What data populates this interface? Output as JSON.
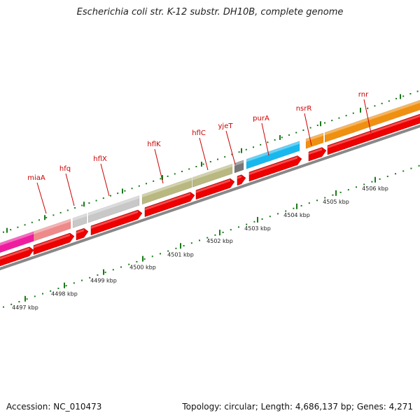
{
  "title": "Escherichia coli str. K-12 substr. DH10B, complete genome",
  "accession_text": "Accession: NC_010473",
  "summary_text": "Topology: circular; Length: 4,686,137 bp; Genes: 4,271",
  "colors": {
    "cds": "#ee0000",
    "backbone": "#888888",
    "ticks": "#1a7a1a",
    "gene_label": "#cc0000"
  },
  "genes": [
    {
      "name": "",
      "color": "#ee1da0"
    },
    {
      "name": "miaA",
      "color": "#ef8a8a"
    },
    {
      "name": "hfq",
      "color": "#c8c8c8"
    },
    {
      "name": "hflX",
      "color": "#c8c8c8"
    },
    {
      "name": "hflK",
      "color": "#b8b880"
    },
    {
      "name": "hflC",
      "color": "#b8b880"
    },
    {
      "name": "yjeT",
      "color": "#777777"
    },
    {
      "name": "purA",
      "color": "#18b8ee"
    },
    {
      "name": "nsrR",
      "color": "#f09010"
    },
    {
      "name": "rnr",
      "color": "#f09010"
    }
  ],
  "kbp_labels": [
    "4497 kbp",
    "4498 kbp",
    "4499 kbp",
    "4500 kbp",
    "4501 kbp",
    "4502 kbp",
    "4503 kbp",
    "4504 kbp",
    "4505 kbp",
    "4506 kbp"
  ]
}
